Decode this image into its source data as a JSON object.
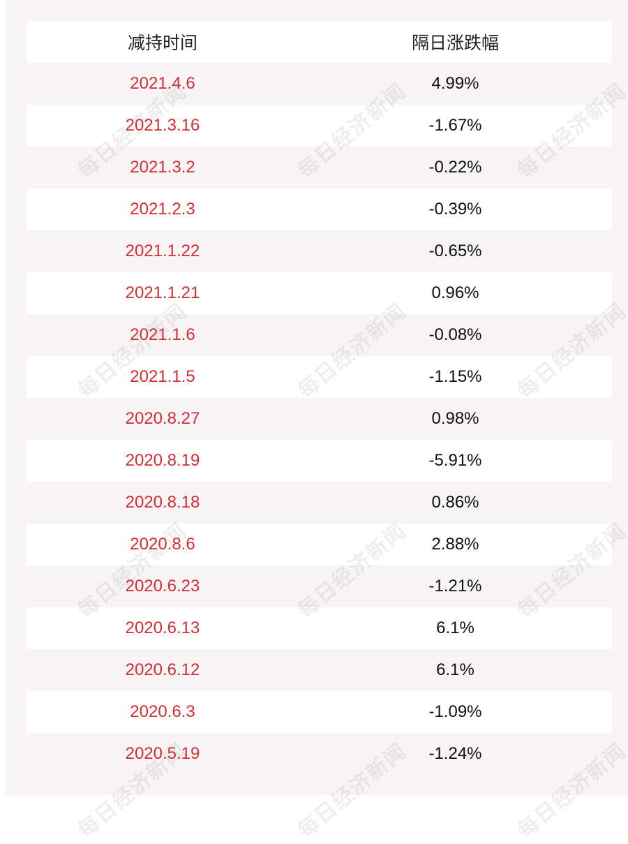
{
  "table": {
    "headers": {
      "date": "减持时间",
      "change": "隔日涨跌幅"
    },
    "rows": [
      {
        "date": "2021.4.6",
        "change": "4.99%"
      },
      {
        "date": "2021.3.16",
        "change": "-1.67%"
      },
      {
        "date": "2021.3.2",
        "change": "-0.22%"
      },
      {
        "date": "2021.2.3",
        "change": "-0.39%"
      },
      {
        "date": "2021.1.22",
        "change": "-0.65%"
      },
      {
        "date": "2021.1.21",
        "change": "0.96%"
      },
      {
        "date": "2021.1.6",
        "change": "-0.08%"
      },
      {
        "date": "2021.1.5",
        "change": "-1.15%"
      },
      {
        "date": "2020.8.27",
        "change": "0.98%"
      },
      {
        "date": "2020.8.19",
        "change": "-5.91%"
      },
      {
        "date": "2020.8.18",
        "change": "0.86%"
      },
      {
        "date": "2020.8.6",
        "change": "2.88%"
      },
      {
        "date": "2020.6.23",
        "change": "-1.21%"
      },
      {
        "date": "2020.6.13",
        "change": "6.1%"
      },
      {
        "date": "2020.6.12",
        "change": "6.1%"
      },
      {
        "date": "2020.6.3",
        "change": "-1.09%"
      },
      {
        "date": "2020.5.19",
        "change": "-1.24%"
      }
    ]
  },
  "watermark": {
    "text": "每日经济新闻"
  },
  "colors": {
    "date_text": "#d02e36",
    "value_text": "#111111",
    "background": "#f8f3f4"
  }
}
